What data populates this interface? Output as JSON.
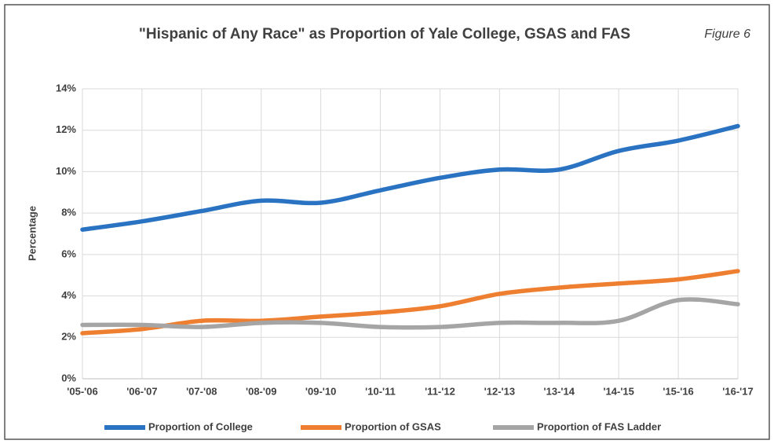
{
  "chart_data": {
    "type": "line",
    "title": "\"Hispanic of Any Race\" as Proportion of Yale College, GSAS and FAS",
    "annotation": "Figure 6",
    "y_label": "Percentage",
    "categories": [
      "'05-'06",
      "'06-'07",
      "'07-'08",
      "'08-'09",
      "'09-'10",
      "'10-'11",
      "'11-'12",
      "'12-'13",
      "'13-'14",
      "'14-'15",
      "'15-'16",
      "'16-'17"
    ],
    "series": [
      {
        "name": "Proportion of College",
        "color": "#2a73c2",
        "values": [
          7.2,
          7.6,
          8.1,
          8.6,
          8.5,
          9.1,
          9.7,
          10.1,
          10.1,
          11.0,
          11.5,
          12.2
        ]
      },
      {
        "name": "Proportion of GSAS",
        "color": "#ef7f30",
        "values": [
          2.2,
          2.4,
          2.8,
          2.8,
          3.0,
          3.2,
          3.5,
          4.1,
          4.4,
          4.6,
          4.8,
          5.2
        ]
      },
      {
        "name": "Proportion of FAS Ladder",
        "color": "#a5a5a5",
        "values": [
          2.6,
          2.6,
          2.5,
          2.7,
          2.7,
          2.5,
          2.5,
          2.7,
          2.7,
          2.8,
          3.8,
          3.6
        ]
      }
    ],
    "ylim": [
      0,
      14
    ],
    "yticks": [
      {
        "value": 0,
        "label": "0%"
      },
      {
        "value": 2,
        "label": "2%"
      },
      {
        "value": 4,
        "label": "4%"
      },
      {
        "value": 6,
        "label": "6%"
      },
      {
        "value": 8,
        "label": "8%"
      },
      {
        "value": 10,
        "label": "10%"
      },
      {
        "value": 12,
        "label": "12%"
      },
      {
        "value": 14,
        "label": "14%"
      }
    ],
    "grid": true,
    "legend": "bottom"
  }
}
